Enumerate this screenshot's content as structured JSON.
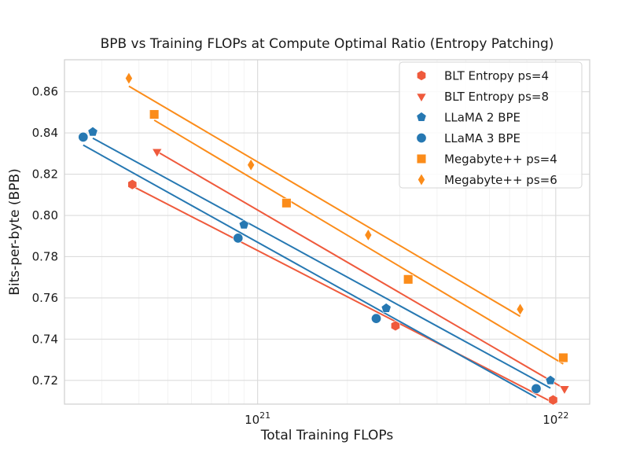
{
  "chart_data": {
    "type": "scatter",
    "title": "BPB vs Training FLOPs at Compute Optimal Ratio (Entropy Patching)",
    "xlabel": "Total Training FLOPs",
    "ylabel": "Bits-per-byte (BPB)",
    "x_scale": "log",
    "xlim": [
      2.25e+20,
      1.3e+22
    ],
    "ylim": [
      0.7085,
      0.8755
    ],
    "x_ticks": [
      {
        "value": 1e+21,
        "base": "10",
        "exp": "21"
      },
      {
        "value": 1e+22,
        "base": "10",
        "exp": "22"
      }
    ],
    "y_ticks": [
      {
        "value": 0.72,
        "label": "0.72"
      },
      {
        "value": 0.74,
        "label": "0.74"
      },
      {
        "value": 0.76,
        "label": "0.76"
      },
      {
        "value": 0.78,
        "label": "0.78"
      },
      {
        "value": 0.8,
        "label": "0.80"
      },
      {
        "value": 0.82,
        "label": "0.82"
      },
      {
        "value": 0.84,
        "label": "0.84"
      },
      {
        "value": 0.86,
        "label": "0.86"
      }
    ],
    "grid": true,
    "legend_position": "top-right",
    "series": [
      {
        "name": "BLT Entropy ps=4",
        "color": "#ef5a3c",
        "marker": "hexagon",
        "x": [
          3.8e+20,
          2.9e+21,
          9.8e+21
        ],
        "y": [
          0.815,
          0.7465,
          0.7105
        ]
      },
      {
        "name": "BLT Entropy ps=8",
        "color": "#ef5a3c",
        "marker": "triangle-down",
        "x": [
          4.6e+20,
          1.07e+22
        ],
        "y": [
          0.831,
          0.716
        ]
      },
      {
        "name": "LLaMA 2 BPE",
        "color": "#2678b2",
        "marker": "pentagon",
        "x": [
          2.8e+20,
          9e+20,
          2.7e+21,
          9.6e+21
        ],
        "y": [
          0.8405,
          0.7955,
          0.755,
          0.72
        ]
      },
      {
        "name": "LLaMA 3 BPE",
        "color": "#2678b2",
        "marker": "circle",
        "x": [
          2.6e+20,
          8.6e+20,
          2.5e+21,
          8.6e+21
        ],
        "y": [
          0.838,
          0.789,
          0.75,
          0.716
        ]
      },
      {
        "name": "Megabyte++ ps=4",
        "color": "#fb8c1a",
        "marker": "square",
        "x": [
          4.5e+20,
          1.25e+21,
          3.2e+21,
          1.06e+22
        ],
        "y": [
          0.849,
          0.806,
          0.769,
          0.731
        ]
      },
      {
        "name": "Megabyte++ ps=6",
        "color": "#fb8c1a",
        "marker": "diamond",
        "x": [
          3.7e+20,
          9.5e+20,
          2.35e+21,
          7.6e+21
        ],
        "y": [
          0.8665,
          0.8245,
          0.7905,
          0.7545
        ]
      }
    ]
  }
}
